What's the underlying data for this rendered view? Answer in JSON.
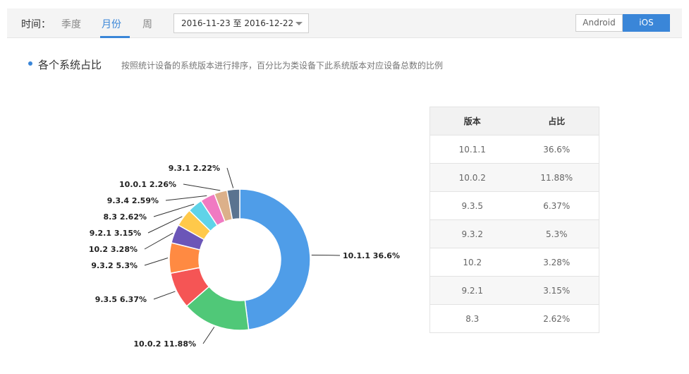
{
  "header": {
    "time_label": "时间：",
    "tabs": [
      {
        "label": "季度",
        "active": false
      },
      {
        "label": "月份",
        "active": true
      },
      {
        "label": "周",
        "active": false
      }
    ],
    "date_range": "2016-11-23 至 2016-12-22",
    "os_options": [
      {
        "label": "Android",
        "active": false
      },
      {
        "label": "iOS",
        "active": true
      }
    ]
  },
  "section": {
    "title": "各个系统占比",
    "description": "按照统计设备的系统版本进行排序，百分比为类设备下此系统版本对应设备总数的比例"
  },
  "table": {
    "headers": [
      "版本",
      "占比"
    ],
    "rows": [
      [
        "10.1.1",
        "36.6%"
      ],
      [
        "10.0.2",
        "11.88%"
      ],
      [
        "9.3.5",
        "6.37%"
      ],
      [
        "9.3.2",
        "5.3%"
      ],
      [
        "10.2",
        "3.28%"
      ],
      [
        "9.2.1",
        "3.15%"
      ],
      [
        "8.3",
        "2.62%"
      ]
    ]
  },
  "colors": {
    "accent": "#3a86d8"
  },
  "chart_data": {
    "type": "pie",
    "donut": true,
    "title": "",
    "slices": [
      {
        "label": "10.1.1",
        "value": 36.6,
        "label_text": "10.1.1 36.6%",
        "color": "#4f9de8"
      },
      {
        "label": "10.0.2",
        "value": 11.88,
        "label_text": "10.0.2 11.88%",
        "color": "#50c878"
      },
      {
        "label": "9.3.5",
        "value": 6.37,
        "label_text": "9.3.5 6.37%",
        "color": "#f55555"
      },
      {
        "label": "9.3.2",
        "value": 5.3,
        "label_text": "9.3.2 5.3%",
        "color": "#ff8a42"
      },
      {
        "label": "10.2",
        "value": 3.28,
        "label_text": "10.2 3.28%",
        "color": "#6b56b8"
      },
      {
        "label": "9.2.1",
        "value": 3.15,
        "label_text": "9.2.1 3.15%",
        "color": "#ffc94a"
      },
      {
        "label": "8.3",
        "value": 2.62,
        "label_text": "8.3 2.62%",
        "color": "#5fd3e8"
      },
      {
        "label": "9.3.4",
        "value": 2.59,
        "label_text": "9.3.4 2.59%",
        "color": "#f07ac2"
      },
      {
        "label": "10.0.1",
        "value": 2.26,
        "label_text": "10.0.1 2.26%",
        "color": "#dcb08a"
      },
      {
        "label": "9.3.1",
        "value": 2.22,
        "label_text": "9.3.1 2.22%",
        "color": "#5a7390"
      }
    ]
  }
}
